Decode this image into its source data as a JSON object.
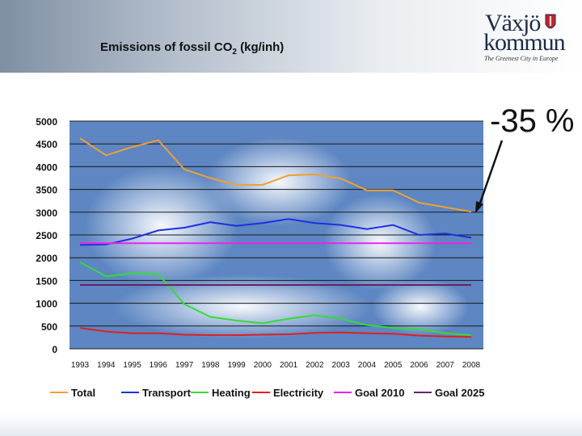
{
  "header": {
    "title_main": "Emissions of fossil CO",
    "title_sub": "2",
    "title_tail": " (kg/inh)"
  },
  "logo": {
    "line1": "Växjö",
    "line2": "kommun",
    "tagline": "The Greenest City in Europe"
  },
  "callout": {
    "text": "-35 %"
  },
  "chart_data": {
    "type": "line",
    "title": "Emissions of fossil CO2 (kg/inh)",
    "xlabel": "",
    "ylabel": "",
    "ylim": [
      0,
      5000
    ],
    "yticks": [
      0,
      500,
      1000,
      1500,
      2000,
      2500,
      3000,
      3500,
      4000,
      4500,
      5000
    ],
    "grid": true,
    "legend_placement": "bottom",
    "x": [
      "1993",
      "1994",
      "1995",
      "1996",
      "1997",
      "1998",
      "1999",
      "2000",
      "2001",
      "2002",
      "2003",
      "2004",
      "2005",
      "2006",
      "2007",
      "2008"
    ],
    "series": [
      {
        "name": "Total",
        "color": "#f0a030",
        "values": [
          4620,
          4250,
          4430,
          4580,
          3940,
          3750,
          3600,
          3600,
          3810,
          3830,
          3740,
          3480,
          3480,
          3210,
          3110,
          3010
        ]
      },
      {
        "name": "Transport",
        "color": "#1f2fe0",
        "values": [
          2280,
          2290,
          2420,
          2600,
          2660,
          2780,
          2700,
          2760,
          2850,
          2760,
          2720,
          2630,
          2720,
          2500,
          2530,
          2440
        ]
      },
      {
        "name": "Heating",
        "color": "#33dd33",
        "values": [
          1900,
          1590,
          1660,
          1640,
          980,
          700,
          620,
          560,
          660,
          740,
          660,
          520,
          460,
          430,
          340,
          300
        ]
      },
      {
        "name": "Electricity",
        "color": "#e02020",
        "values": [
          460,
          380,
          340,
          340,
          310,
          300,
          300,
          310,
          320,
          350,
          360,
          340,
          330,
          290,
          270,
          260
        ]
      },
      {
        "name": "Goal 2010",
        "color": "#ee22ee",
        "values": [
          2320,
          2320,
          2320,
          2320,
          2320,
          2320,
          2320,
          2320,
          2320,
          2320,
          2320,
          2320,
          2320,
          2320,
          2320,
          2320
        ]
      },
      {
        "name": "Goal 2025",
        "color": "#662266",
        "values": [
          1400,
          1400,
          1400,
          1400,
          1400,
          1400,
          1400,
          1400,
          1400,
          1400,
          1400,
          1400,
          1400,
          1400,
          1400,
          1400
        ]
      }
    ]
  }
}
